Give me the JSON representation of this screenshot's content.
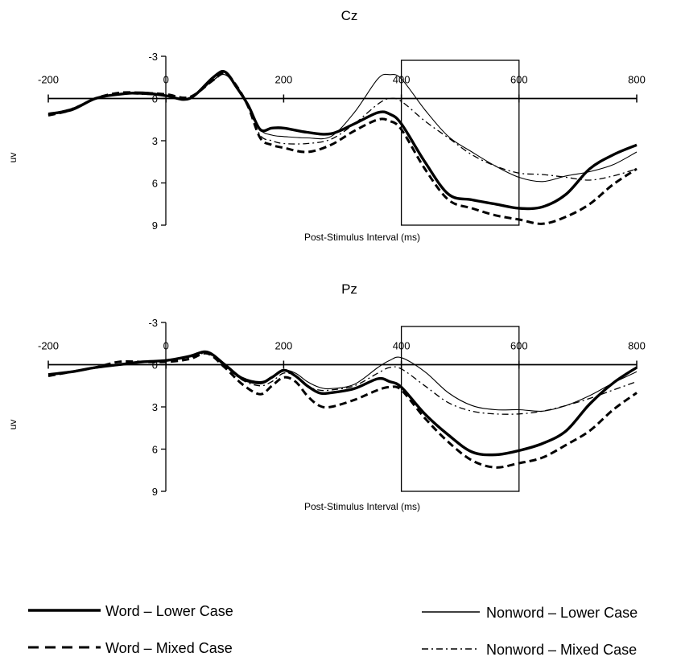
{
  "chart_data": [
    {
      "type": "line",
      "title": "Cz",
      "xlabel": "Post-Stimulus Interval (ms)",
      "ylabel": "uv",
      "xlim": [
        -200,
        800
      ],
      "ylim": [
        -3,
        9
      ],
      "y_inverted": true,
      "x_ticks": [
        -200,
        0,
        200,
        400,
        600,
        800
      ],
      "y_ticks": [
        -3,
        0,
        3,
        6,
        9
      ],
      "x_tick_labels": [
        "-200",
        "0",
        "200",
        "400",
        "600",
        "800"
      ],
      "y_tick_labels": [
        "-3",
        "0",
        "3",
        "6",
        "9"
      ],
      "highlight_window": [
        400,
        600
      ],
      "series": [
        {
          "name": "Word – Lower Case",
          "style": "thick-solid",
          "x": [
            -200,
            -160,
            -120,
            -80,
            -40,
            0,
            40,
            80,
            100,
            120,
            140,
            160,
            180,
            200,
            240,
            280,
            320,
            360,
            380,
            400,
            440,
            480,
            520,
            560,
            600,
            640,
            680,
            720,
            760,
            800
          ],
          "y": [
            1.1,
            0.8,
            0.0,
            -0.3,
            -0.4,
            -0.2,
            0.0,
            -1.5,
            -1.9,
            -0.8,
            0.5,
            2.2,
            2.1,
            2.1,
            2.4,
            2.5,
            1.8,
            1.0,
            1.1,
            1.8,
            4.5,
            6.8,
            7.2,
            7.5,
            7.8,
            7.7,
            6.8,
            5.0,
            4.0,
            3.3
          ]
        },
        {
          "name": "Word – Mixed Case",
          "style": "thick-dashed",
          "x": [
            -200,
            -160,
            -120,
            -80,
            -40,
            0,
            40,
            80,
            100,
            120,
            140,
            160,
            180,
            200,
            240,
            280,
            320,
            360,
            380,
            400,
            440,
            480,
            520,
            560,
            600,
            640,
            680,
            720,
            760,
            800
          ],
          "y": [
            1.2,
            0.8,
            0.0,
            -0.4,
            -0.4,
            -0.3,
            -0.1,
            -1.3,
            -1.8,
            -0.9,
            0.6,
            2.8,
            3.3,
            3.5,
            3.8,
            3.3,
            2.3,
            1.5,
            1.6,
            2.2,
            5.0,
            7.2,
            7.8,
            8.3,
            8.6,
            8.9,
            8.4,
            7.5,
            6.1,
            5.0
          ]
        },
        {
          "name": "Nonword – Lower Case",
          "style": "thin-solid",
          "x": [
            -200,
            -160,
            -120,
            -80,
            -40,
            0,
            40,
            80,
            100,
            120,
            140,
            160,
            180,
            200,
            240,
            280,
            320,
            360,
            380,
            400,
            440,
            480,
            520,
            560,
            600,
            640,
            680,
            720,
            760,
            800
          ],
          "y": [
            1.1,
            0.7,
            0.0,
            -0.3,
            -0.3,
            -0.2,
            0.0,
            -1.3,
            -1.7,
            -0.9,
            0.5,
            2.2,
            2.6,
            2.7,
            2.8,
            2.7,
            1.0,
            -1.4,
            -1.7,
            -1.4,
            0.8,
            2.7,
            3.8,
            4.8,
            5.6,
            5.9,
            5.5,
            5.2,
            4.7,
            3.8
          ]
        },
        {
          "name": "Nonword – Mixed Case",
          "style": "thin-dashdot",
          "x": [
            -200,
            -160,
            -120,
            -80,
            -40,
            0,
            40,
            80,
            100,
            120,
            140,
            160,
            180,
            200,
            240,
            280,
            320,
            360,
            380,
            400,
            440,
            480,
            520,
            560,
            600,
            640,
            680,
            720,
            760,
            800
          ],
          "y": [
            1.1,
            0.7,
            0.0,
            -0.3,
            -0.3,
            -0.2,
            0.0,
            -1.3,
            -1.7,
            -0.8,
            0.6,
            2.6,
            3.0,
            3.2,
            3.2,
            2.9,
            1.8,
            0.4,
            0.0,
            0.2,
            1.6,
            2.8,
            4.0,
            4.8,
            5.3,
            5.4,
            5.6,
            5.8,
            5.5,
            5.0
          ]
        }
      ]
    },
    {
      "type": "line",
      "title": "Pz",
      "xlabel": "Post-Stimulus Interval (ms)",
      "ylabel": "uv",
      "xlim": [
        -200,
        800
      ],
      "ylim": [
        -3,
        9
      ],
      "y_inverted": true,
      "x_ticks": [
        -200,
        0,
        200,
        400,
        600,
        800
      ],
      "y_ticks": [
        -3,
        0,
        3,
        6,
        9
      ],
      "x_tick_labels": [
        "-200",
        "0",
        "200",
        "400",
        "600",
        "800"
      ],
      "y_tick_labels": [
        "-3",
        "0",
        "3",
        "6",
        "9"
      ],
      "highlight_window": [
        400,
        600
      ],
      "series": [
        {
          "name": "Word – Lower Case",
          "style": "thick-solid",
          "x": [
            -200,
            -160,
            -120,
            -80,
            -40,
            0,
            40,
            70,
            100,
            130,
            160,
            180,
            200,
            220,
            240,
            260,
            280,
            320,
            360,
            380,
            400,
            440,
            480,
            520,
            560,
            600,
            640,
            680,
            720,
            760,
            800
          ],
          "y": [
            0.7,
            0.5,
            0.2,
            0.0,
            -0.2,
            -0.3,
            -0.6,
            -0.9,
            0.0,
            1.0,
            1.3,
            0.9,
            0.4,
            0.8,
            1.5,
            2.0,
            2.0,
            1.7,
            1.0,
            1.2,
            1.6,
            3.5,
            5.0,
            6.2,
            6.4,
            6.1,
            5.6,
            4.7,
            2.8,
            1.3,
            0.2
          ]
        },
        {
          "name": "Word – Mixed Case",
          "style": "thick-dashed",
          "x": [
            -200,
            -160,
            -120,
            -80,
            -40,
            0,
            40,
            70,
            100,
            130,
            160,
            180,
            200,
            220,
            240,
            260,
            280,
            320,
            360,
            380,
            400,
            440,
            480,
            520,
            560,
            600,
            640,
            680,
            720,
            760,
            800
          ],
          "y": [
            0.8,
            0.5,
            0.2,
            -0.2,
            -0.2,
            -0.2,
            -0.4,
            -0.8,
            0.2,
            1.4,
            2.1,
            1.5,
            0.9,
            1.2,
            2.2,
            2.9,
            3.0,
            2.5,
            1.8,
            1.6,
            1.8,
            3.8,
            5.5,
            6.8,
            7.3,
            7.0,
            6.6,
            5.7,
            4.7,
            3.2,
            2.0
          ]
        },
        {
          "name": "Nonword – Lower Case",
          "style": "thin-solid",
          "x": [
            -200,
            -160,
            -120,
            -80,
            -40,
            0,
            40,
            70,
            100,
            130,
            160,
            180,
            200,
            220,
            240,
            260,
            280,
            320,
            360,
            380,
            400,
            440,
            480,
            520,
            560,
            600,
            640,
            680,
            720,
            760,
            800
          ],
          "y": [
            0.7,
            0.5,
            0.2,
            0.0,
            -0.2,
            -0.3,
            -0.6,
            -0.9,
            0.0,
            0.9,
            1.2,
            0.9,
            0.4,
            0.6,
            1.2,
            1.6,
            1.7,
            1.4,
            0.2,
            -0.3,
            -0.5,
            0.5,
            2.0,
            2.9,
            3.2,
            3.2,
            3.3,
            2.9,
            2.2,
            1.3,
            0.5
          ]
        },
        {
          "name": "Nonword – Mixed Case",
          "style": "thin-dashdot",
          "x": [
            -200,
            -160,
            -120,
            -80,
            -40,
            0,
            40,
            70,
            100,
            130,
            160,
            180,
            200,
            220,
            240,
            260,
            280,
            320,
            360,
            380,
            400,
            440,
            480,
            520,
            560,
            600,
            640,
            680,
            720,
            760,
            800
          ],
          "y": [
            0.7,
            0.5,
            0.2,
            0.0,
            -0.2,
            -0.3,
            -0.5,
            -0.8,
            0.1,
            1.1,
            1.5,
            1.2,
            0.6,
            0.8,
            1.5,
            1.8,
            1.8,
            1.5,
            0.6,
            0.2,
            0.3,
            1.5,
            2.7,
            3.3,
            3.5,
            3.5,
            3.3,
            2.9,
            2.4,
            1.8,
            1.2
          ]
        }
      ]
    }
  ],
  "legend": {
    "items": [
      {
        "label": "Word – Lower Case",
        "style": "thick-solid"
      },
      {
        "label": "Nonword – Lower Case",
        "style": "thin-solid"
      },
      {
        "label": "Word – Mixed Case",
        "style": "thick-dashed"
      },
      {
        "label": "Nonword – Mixed Case",
        "style": "thin-dashdot"
      }
    ]
  }
}
